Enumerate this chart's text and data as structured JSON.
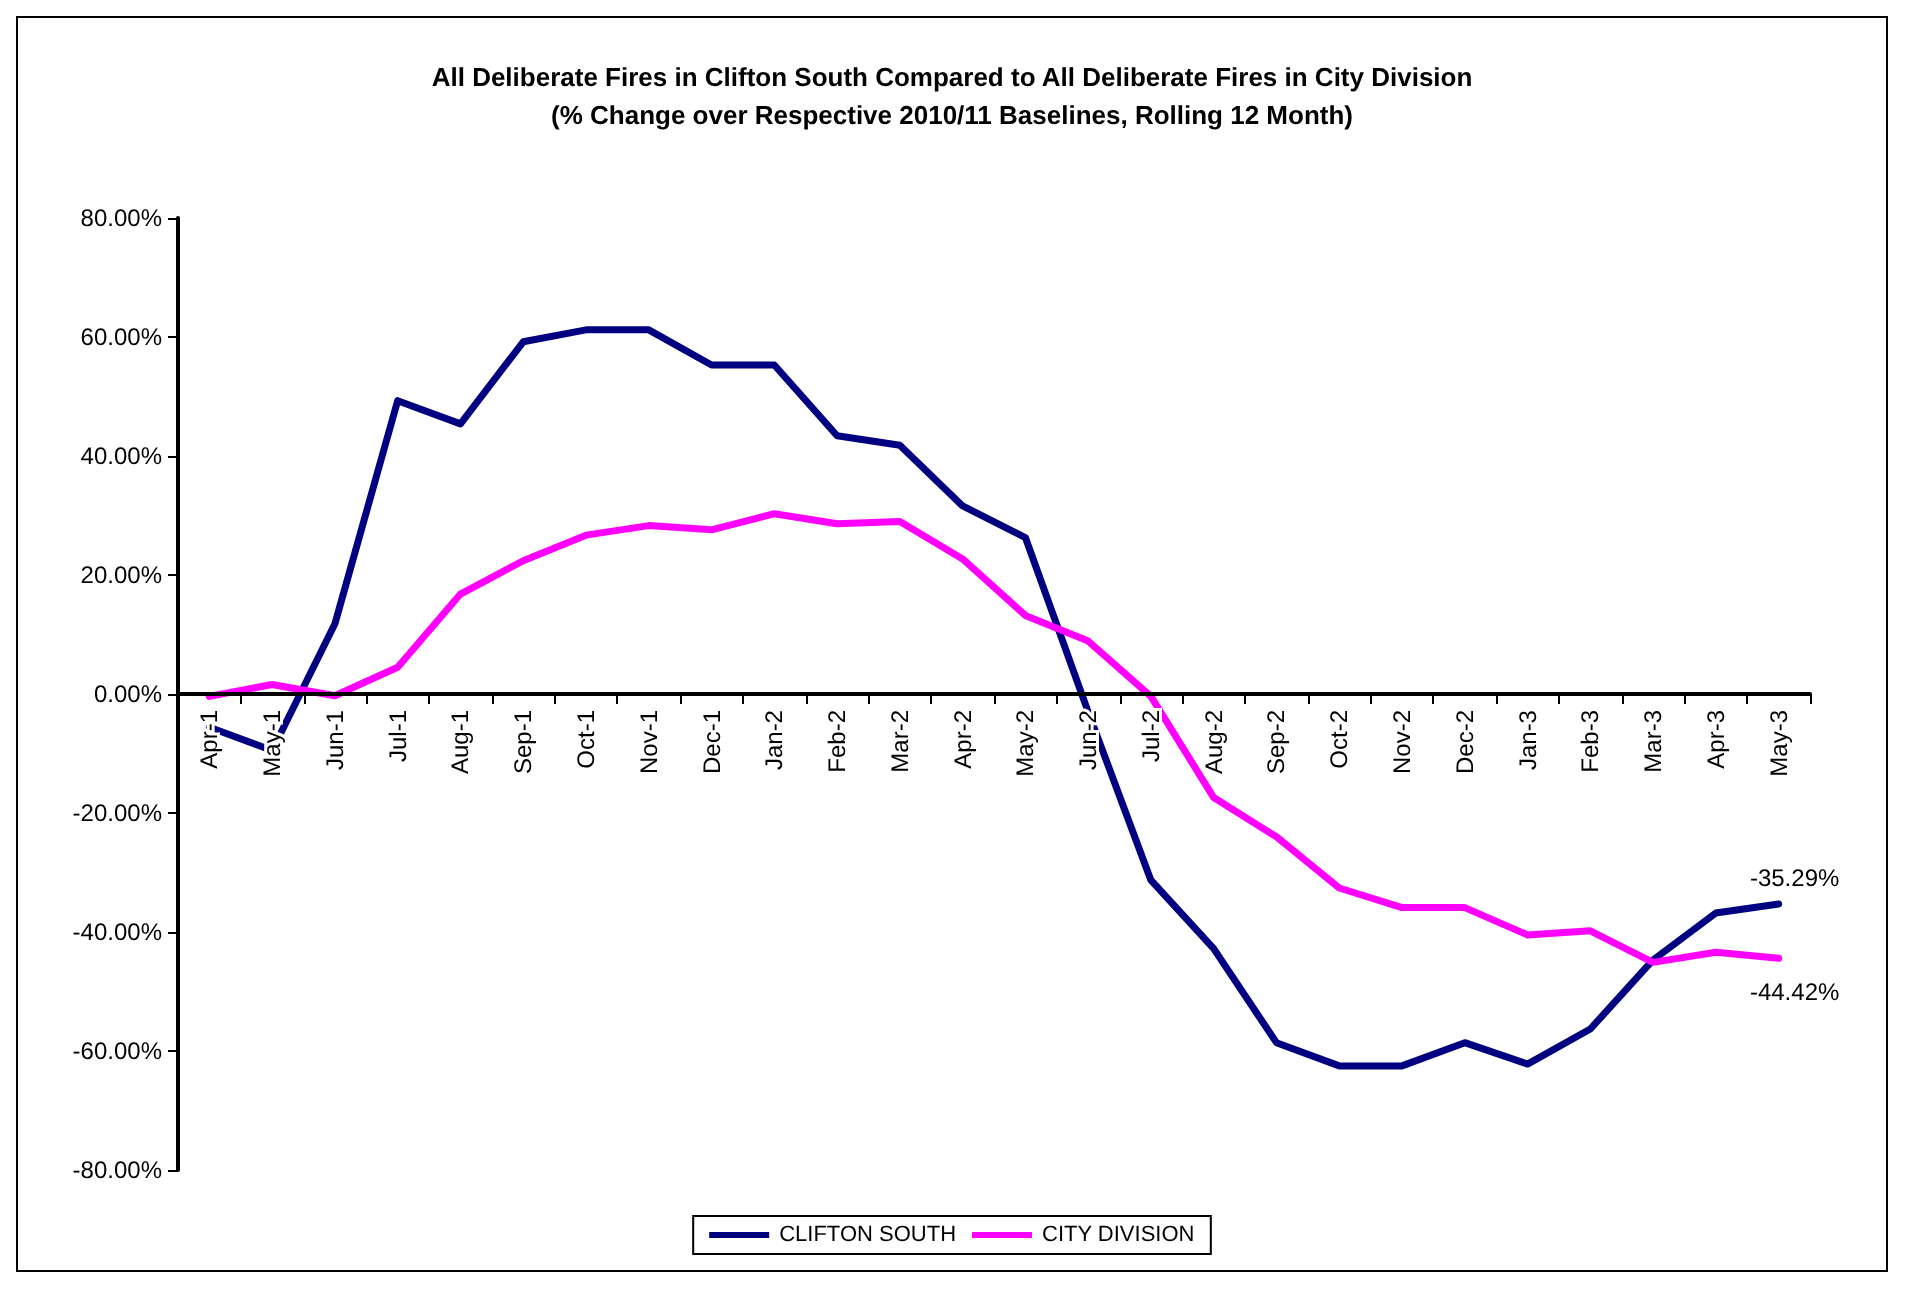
{
  "chart_data": {
    "type": "line",
    "title": "All Deliberate Fires in Clifton South Compared to All Deliberate Fires in City Division",
    "subtitle": "(% Change over Respective 2010/11 Baselines, Rolling 12 Month)",
    "categories": [
      "Apr-1",
      "May-1",
      "Jun-1",
      "Jul-1",
      "Aug-1",
      "Sep-1",
      "Oct-1",
      "Nov-1",
      "Dec-1",
      "Jan-2",
      "Feb-2",
      "Mar-2",
      "Apr-2",
      "May-2",
      "Jun-2",
      "Jul-2",
      "Aug-2",
      "Sep-2",
      "Oct-2",
      "Nov-2",
      "Dec-2",
      "Jan-3",
      "Feb-3",
      "Mar-3",
      "Apr-3",
      "May-3"
    ],
    "series": [
      {
        "name": "CLIFTON SOUTH",
        "color": "#000080",
        "values": [
          -5.6,
          -9.5,
          11.8,
          49.3,
          45.4,
          59.2,
          61.2,
          61.2,
          55.3,
          55.3,
          43.4,
          41.8,
          31.6,
          26.3,
          -3,
          -31.3,
          -42.8,
          -58.6,
          -62.5,
          -62.5,
          -58.6,
          -62.2,
          -56.3,
          -44.7,
          -36.8,
          -35.29
        ],
        "value_labels": [
          null,
          null,
          null,
          null,
          null,
          null,
          null,
          null,
          null,
          null,
          null,
          null,
          null,
          null,
          null,
          null,
          null,
          null,
          null,
          null,
          null,
          null,
          null,
          null,
          null,
          "-35.29%"
        ]
      },
      {
        "name": "CITY DIVISION",
        "color": "#ff00ff",
        "values": [
          -0.4,
          1.6,
          -0.3,
          4.5,
          16.8,
          22.4,
          26.7,
          28.3,
          27.6,
          30.3,
          28.6,
          29,
          22.7,
          13.2,
          8.9,
          -0.4,
          -17.4,
          -24,
          -32.6,
          -35.9,
          -35.9,
          -40.5,
          -39.8,
          -45.1,
          -43.4,
          -44.42
        ],
        "value_labels": [
          null,
          null,
          null,
          null,
          null,
          null,
          null,
          null,
          null,
          null,
          null,
          null,
          null,
          null,
          null,
          null,
          null,
          null,
          null,
          null,
          null,
          null,
          null,
          null,
          null,
          "-44.42%"
        ]
      }
    ],
    "ylim": [
      -80,
      80
    ],
    "yticks": [
      {
        "value": -80,
        "label": "-80.00%"
      },
      {
        "value": -60,
        "label": "-60.00%"
      },
      {
        "value": -40,
        "label": "-40.00%"
      },
      {
        "value": -20,
        "label": "-20.00%"
      },
      {
        "value": 0,
        "label": "0.00%"
      },
      {
        "value": 20,
        "label": "20.00%"
      },
      {
        "value": 40,
        "label": "40.00%"
      },
      {
        "value": 60,
        "label": "60.00%"
      },
      {
        "value": 80,
        "label": "80.00%"
      }
    ],
    "grid": false,
    "legend": "bottom",
    "marker": "none",
    "line_style": "solid"
  }
}
